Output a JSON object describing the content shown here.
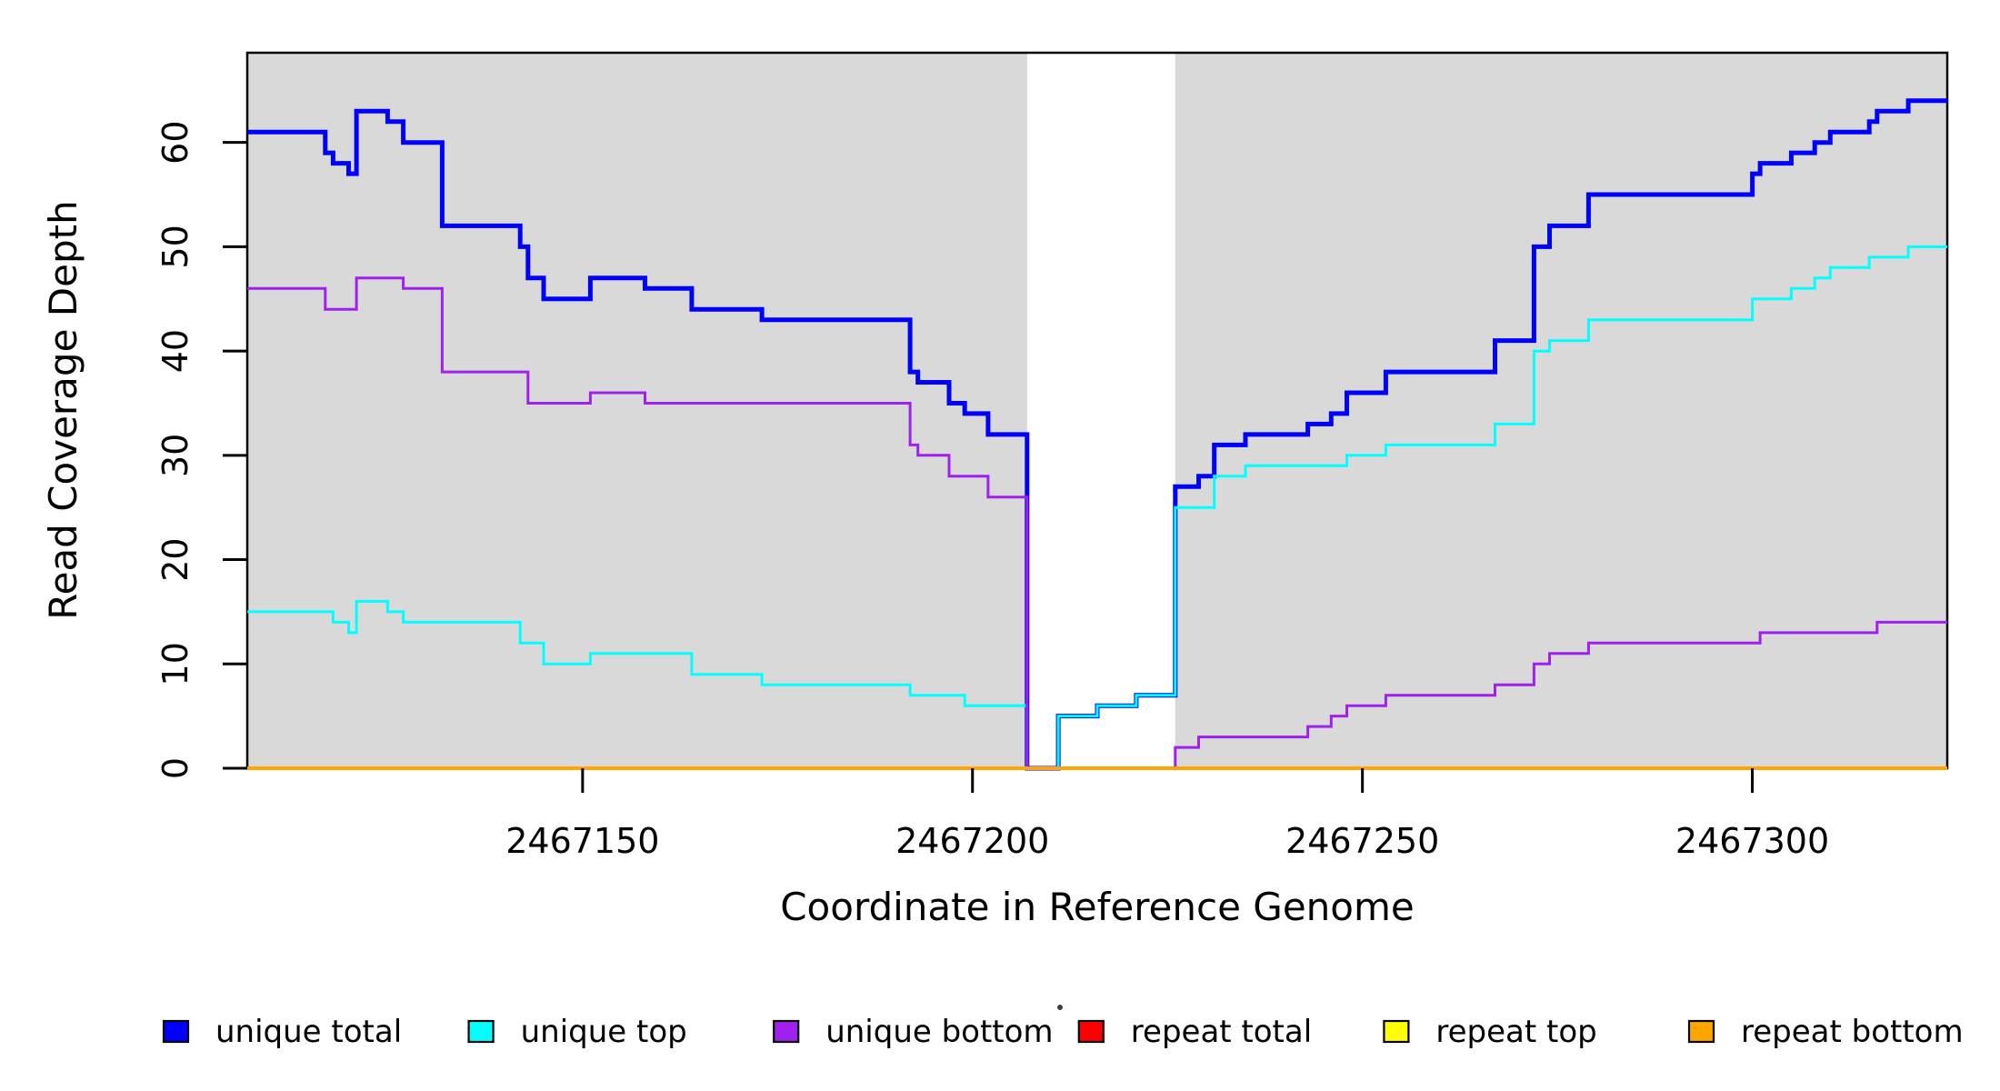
{
  "figure": {
    "background": "#FFFFFF",
    "plot_frame_color": "#000000",
    "shaded_band_color": "#D9D9D9"
  },
  "chart_data": {
    "type": "line",
    "step": "after",
    "title": "",
    "xlabel": "Coordinate in Reference Genome",
    "ylabel": "Read Coverage Depth",
    "xlim": [
      2467107,
      2467325
    ],
    "ylim": [
      0,
      68.6
    ],
    "x_ticks": [
      2467150,
      2467200,
      2467250,
      2467300
    ],
    "x_tick_labels": [
      "2467150",
      "2467200",
      "2467250",
      "2467300"
    ],
    "y_ticks": [
      0,
      10,
      20,
      30,
      40,
      50,
      60
    ],
    "y_tick_labels": [
      "0",
      "10",
      "20",
      "30",
      "40",
      "50",
      "60"
    ],
    "grid": false,
    "legend_position": "bottom",
    "shaded_regions": [
      {
        "x0": 2467107,
        "x1": 2467207,
        "color": "#D9D9D9"
      },
      {
        "x0": 2467226,
        "x1": 2467325,
        "color": "#D9D9D9"
      }
    ],
    "series": [
      {
        "name": "unique total",
        "color": "#0000FF",
        "width": 5,
        "points": [
          [
            2467107,
            61
          ],
          [
            2467117,
            59
          ],
          [
            2467118,
            58
          ],
          [
            2467120,
            57
          ],
          [
            2467121,
            63
          ],
          [
            2467125,
            62
          ],
          [
            2467127,
            60
          ],
          [
            2467132,
            52
          ],
          [
            2467142,
            50
          ],
          [
            2467143,
            47
          ],
          [
            2467145,
            45
          ],
          [
            2467151,
            47
          ],
          [
            2467158,
            46
          ],
          [
            2467164,
            44
          ],
          [
            2467173,
            43
          ],
          [
            2467192,
            38
          ],
          [
            2467193,
            37
          ],
          [
            2467197,
            35
          ],
          [
            2467199,
            34
          ],
          [
            2467202,
            32
          ],
          [
            2467207,
            0
          ],
          [
            2467211,
            5
          ],
          [
            2467216,
            6
          ],
          [
            2467221,
            7
          ],
          [
            2467226,
            27
          ],
          [
            2467229,
            28
          ],
          [
            2467231,
            31
          ],
          [
            2467235,
            32
          ],
          [
            2467243,
            33
          ],
          [
            2467246,
            34
          ],
          [
            2467248,
            36
          ],
          [
            2467253,
            38
          ],
          [
            2467267,
            41
          ],
          [
            2467272,
            50
          ],
          [
            2467274,
            52
          ],
          [
            2467279,
            55
          ],
          [
            2467300,
            57
          ],
          [
            2467301,
            58
          ],
          [
            2467305,
            59
          ],
          [
            2467308,
            60
          ],
          [
            2467310,
            61
          ],
          [
            2467315,
            62
          ],
          [
            2467316,
            63
          ],
          [
            2467320,
            64
          ],
          [
            2467325,
            64
          ]
        ]
      },
      {
        "name": "unique top",
        "color": "#00FFFF",
        "width": 3,
        "points": [
          [
            2467107,
            15
          ],
          [
            2467118,
            14
          ],
          [
            2467120,
            13
          ],
          [
            2467121,
            16
          ],
          [
            2467125,
            15
          ],
          [
            2467127,
            14
          ],
          [
            2467142,
            12
          ],
          [
            2467145,
            10
          ],
          [
            2467151,
            11
          ],
          [
            2467164,
            9
          ],
          [
            2467173,
            8
          ],
          [
            2467192,
            7
          ],
          [
            2467199,
            6
          ],
          [
            2467207,
            0
          ],
          [
            2467211,
            5
          ],
          [
            2467216,
            6
          ],
          [
            2467221,
            7
          ],
          [
            2467226,
            25
          ],
          [
            2467231,
            28
          ],
          [
            2467235,
            29
          ],
          [
            2467248,
            30
          ],
          [
            2467253,
            31
          ],
          [
            2467267,
            33
          ],
          [
            2467272,
            40
          ],
          [
            2467274,
            41
          ],
          [
            2467279,
            43
          ],
          [
            2467300,
            45
          ],
          [
            2467305,
            46
          ],
          [
            2467308,
            47
          ],
          [
            2467310,
            48
          ],
          [
            2467315,
            49
          ],
          [
            2467320,
            50
          ],
          [
            2467325,
            50
          ]
        ]
      },
      {
        "name": "unique bottom",
        "color": "#A020F0",
        "width": 3,
        "points": [
          [
            2467107,
            46
          ],
          [
            2467117,
            44
          ],
          [
            2467121,
            47
          ],
          [
            2467127,
            46
          ],
          [
            2467132,
            38
          ],
          [
            2467143,
            35
          ],
          [
            2467151,
            36
          ],
          [
            2467158,
            35
          ],
          [
            2467192,
            31
          ],
          [
            2467193,
            30
          ],
          [
            2467197,
            28
          ],
          [
            2467202,
            26
          ],
          [
            2467207,
            0
          ],
          [
            2467226,
            2
          ],
          [
            2467229,
            3
          ],
          [
            2467243,
            4
          ],
          [
            2467246,
            5
          ],
          [
            2467248,
            6
          ],
          [
            2467253,
            7
          ],
          [
            2467267,
            8
          ],
          [
            2467272,
            10
          ],
          [
            2467274,
            11
          ],
          [
            2467279,
            12
          ],
          [
            2467301,
            13
          ],
          [
            2467316,
            14
          ],
          [
            2467325,
            14
          ]
        ]
      },
      {
        "name": "repeat total",
        "color": "#FF0000",
        "width": 3,
        "points": [
          [
            2467107,
            0
          ],
          [
            2467325,
            0
          ]
        ]
      },
      {
        "name": "repeat top",
        "color": "#FFFF00",
        "width": 3,
        "points": [
          [
            2467107,
            0
          ],
          [
            2467325,
            0
          ]
        ]
      },
      {
        "name": "repeat bottom",
        "color": "#FFA500",
        "width": 4,
        "points": [
          [
            2467107,
            0
          ],
          [
            2467325,
            0
          ]
        ]
      }
    ],
    "legend": [
      {
        "label": "unique total",
        "color": "#0000FF"
      },
      {
        "label": "unique top",
        "color": "#00FFFF"
      },
      {
        "label": "unique bottom",
        "color": "#A020F0"
      },
      {
        "label": "repeat total",
        "color": "#FF0000"
      },
      {
        "label": "repeat top",
        "color": "#FFFF00"
      },
      {
        "label": "repeat bottom",
        "color": "#FFA500"
      }
    ]
  }
}
